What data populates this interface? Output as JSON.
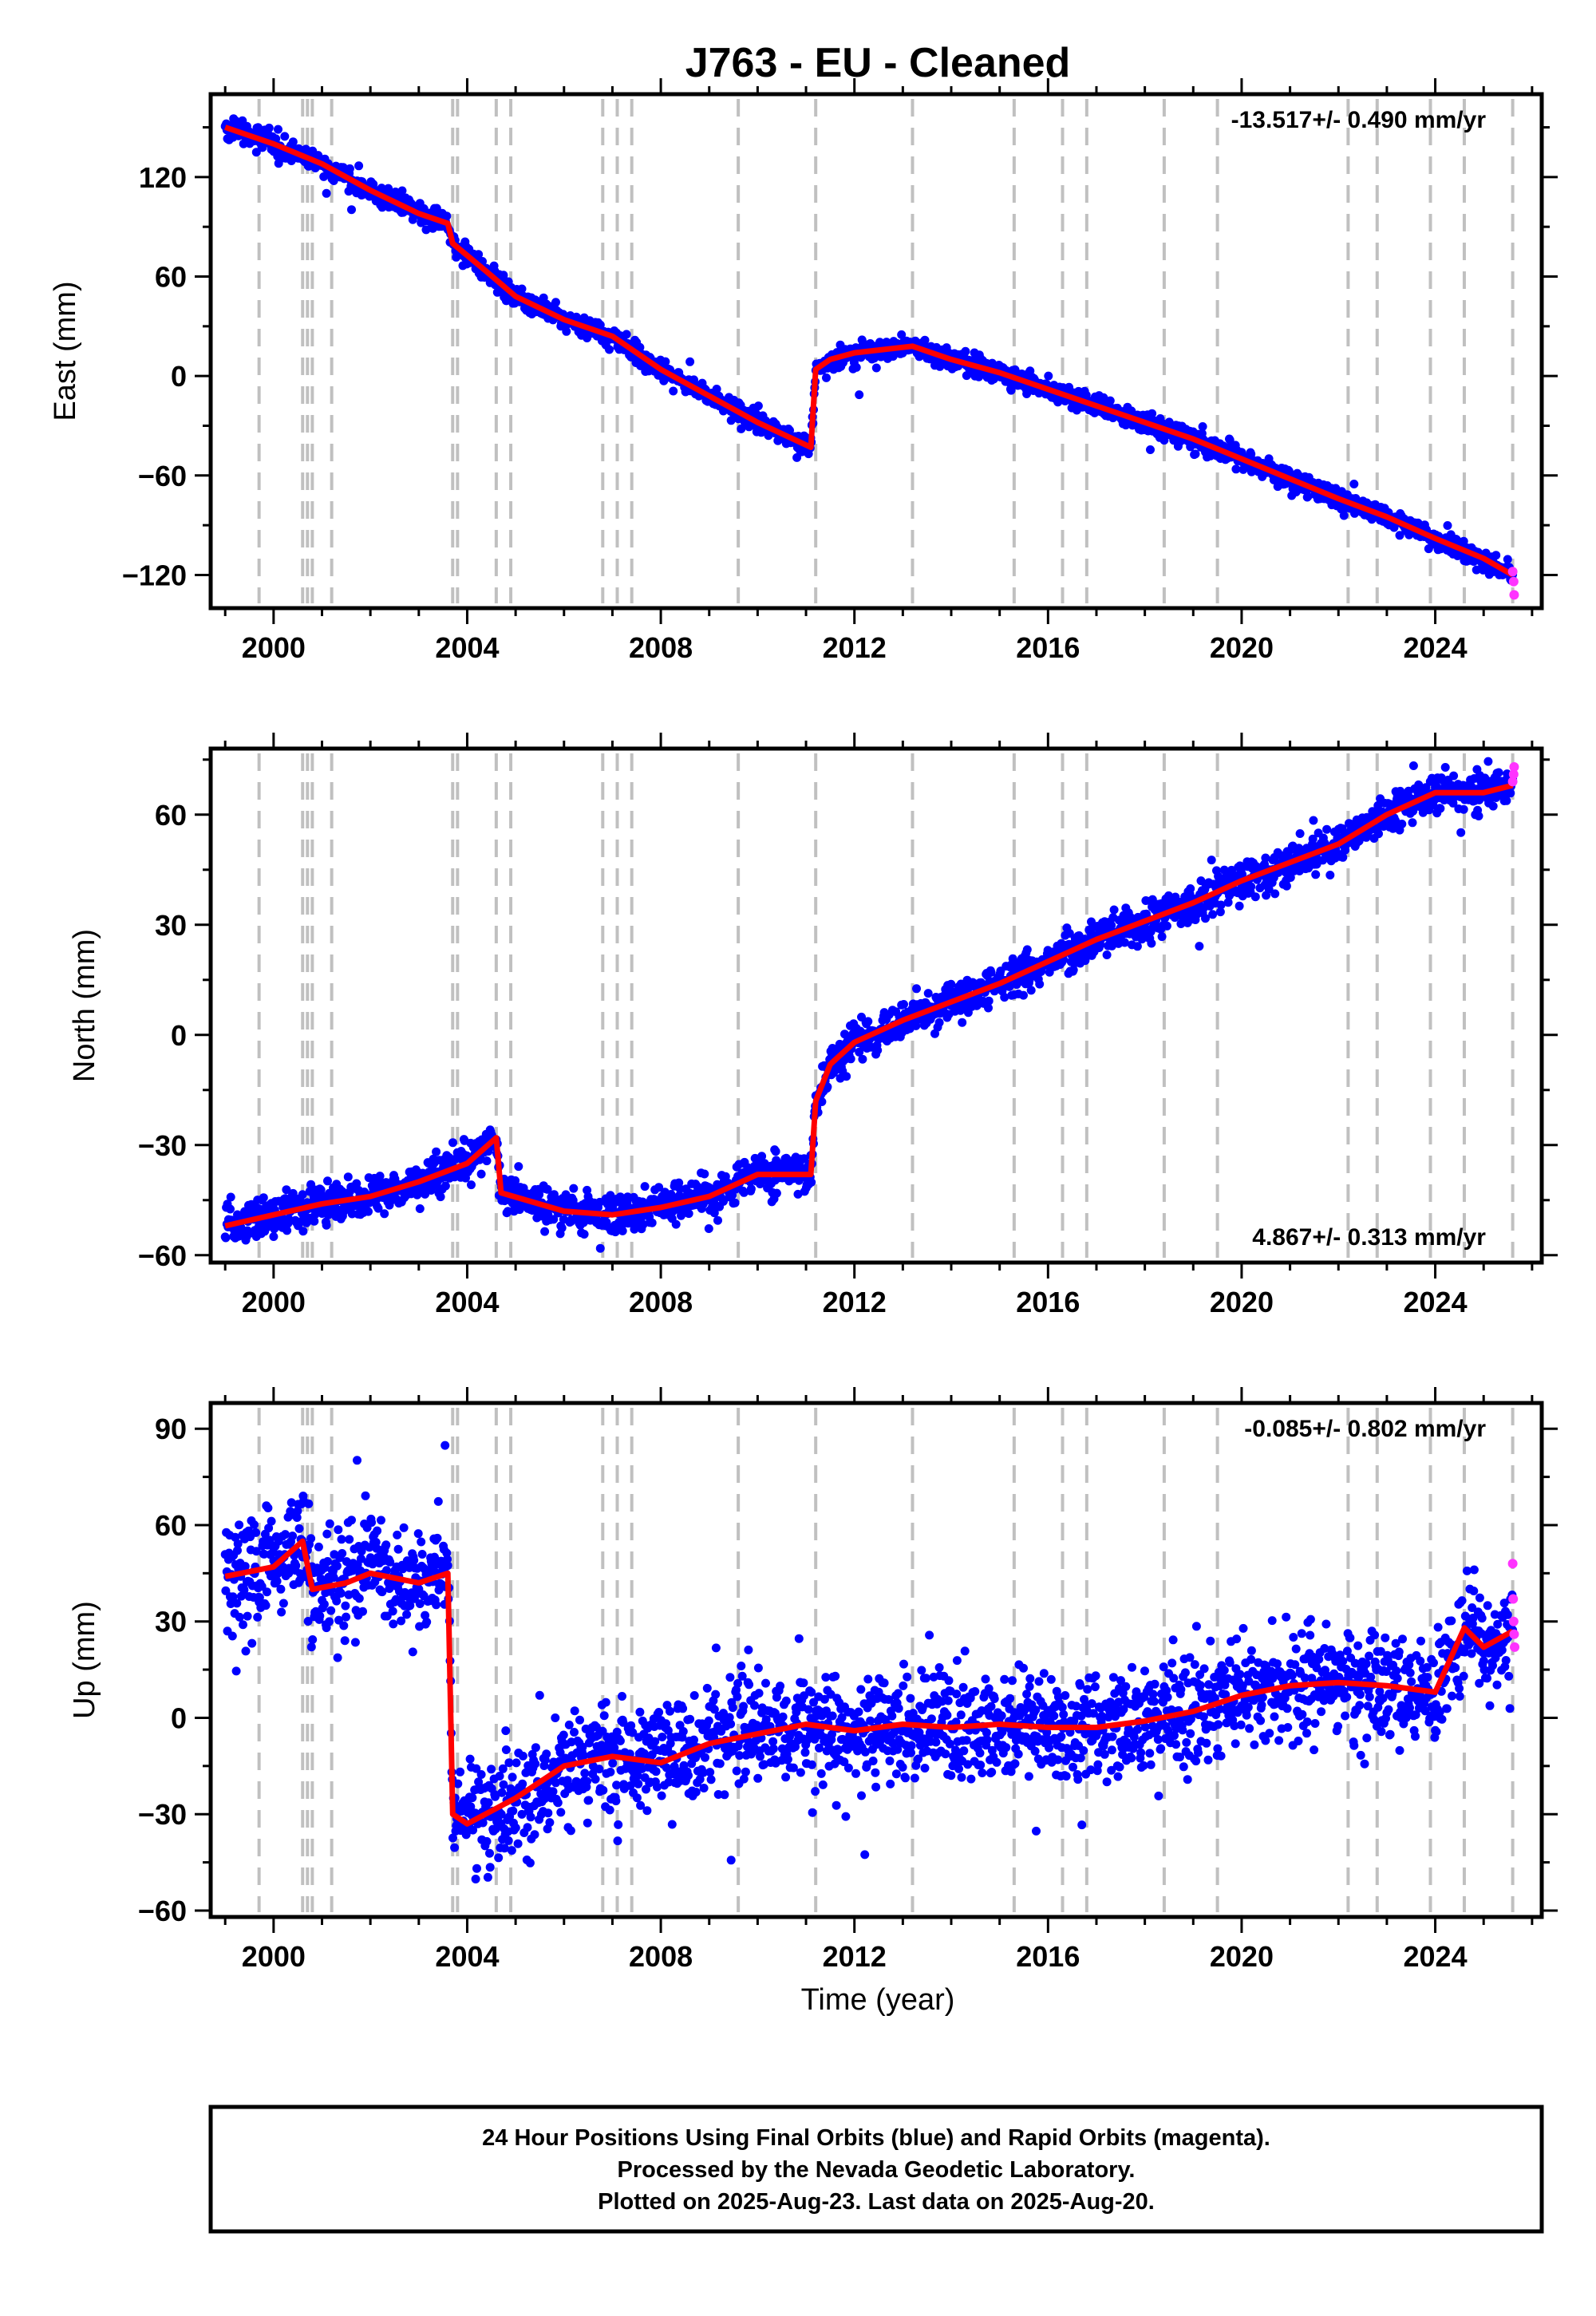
{
  "title": "J763  - EU - Cleaned",
  "xlabel": "Time (year)",
  "footer": {
    "line1": "24 Hour Positions Using Final Orbits (blue) and Rapid Orbits (magenta).",
    "line2": "Processed by the Nevada Geodetic Laboratory.",
    "line3": "Plotted on 2025-Aug-23. Last data on 2025-Aug-20."
  },
  "colors": {
    "final_orbits": "#0000ff",
    "rapid_orbits": "#ff33ff",
    "model": "#ff0000",
    "steps": "#c0c0c0"
  },
  "chart_data": [
    {
      "type": "scatter",
      "name": "east",
      "ylabel": "East (mm)",
      "rate": "-13.517+/- 0.490 mm/yr",
      "xlim": [
        1998.7,
        2026.2
      ],
      "ylim": [
        -140,
        170
      ],
      "xticks": [
        2000,
        2004,
        2008,
        2012,
        2016,
        2020,
        2024
      ],
      "yticks": [
        -120,
        -60,
        0,
        60,
        120
      ],
      "ytick_labels": [
        "−120",
        "−60",
        "0",
        "60",
        "120"
      ],
      "trend": {
        "x": [
          1999.0,
          2000.0,
          2001.0,
          2002.0,
          2003.0,
          2003.6,
          2003.7,
          2004.4,
          2005.0,
          2006.0,
          2007.0,
          2008.0,
          2009.0,
          2010.0,
          2011.1,
          2011.2,
          2011.5,
          2012.0,
          2013.2,
          2014.0,
          2015.0,
          2016.0,
          2017.0,
          2018.0,
          2019.0,
          2020.0,
          2021.0,
          2022.0,
          2023.0,
          2024.0,
          2025.0,
          2025.6
        ],
        "y": [
          150,
          140,
          128,
          112,
          98,
          92,
          80,
          63,
          48,
          34,
          24,
          4,
          -12,
          -28,
          -43,
          4,
          10,
          14,
          18,
          10,
          2,
          -8,
          -18,
          -28,
          -38,
          -50,
          -62,
          -74,
          -85,
          -98,
          -110,
          -120
        ],
        "noise": 3.0
      },
      "rapid": {
        "x": [
          2025.6,
          2025.62,
          2025.63
        ],
        "y": [
          -118,
          -124,
          -132
        ]
      },
      "steps": [
        1999.7,
        2000.6,
        2000.7,
        2000.8,
        2001.2,
        2003.7,
        2003.8,
        2004.6,
        2004.9,
        2006.8,
        2007.1,
        2007.4,
        2009.6,
        2011.2,
        2013.2,
        2015.3,
        2016.3,
        2016.8,
        2018.4,
        2019.5,
        2022.2,
        2022.8,
        2023.9,
        2024.6,
        2025.6
      ]
    },
    {
      "type": "scatter",
      "name": "north",
      "ylabel": "North (mm)",
      "rate": "4.867+/- 0.313 mm/yr",
      "xlim": [
        1998.7,
        2026.2
      ],
      "ylim": [
        -62,
        78
      ],
      "xticks": [
        2000,
        2004,
        2008,
        2012,
        2016,
        2020,
        2024
      ],
      "yticks": [
        -60,
        -30,
        0,
        30,
        60
      ],
      "ytick_labels": [
        "−60",
        "−30",
        "0",
        "30",
        "60"
      ],
      "trend": {
        "x": [
          1999.0,
          2000.0,
          2001.0,
          2002.0,
          2003.0,
          2004.0,
          2004.6,
          2004.7,
          2006.0,
          2007.0,
          2008.0,
          2009.0,
          2010.0,
          2011.1,
          2011.2,
          2011.5,
          2012.0,
          2013.0,
          2014.0,
          2015.0,
          2016.0,
          2017.0,
          2018.0,
          2019.0,
          2020.0,
          2021.0,
          2022.0,
          2023.0,
          2024.0,
          2025.0,
          2025.6
        ],
        "y": [
          -52,
          -49,
          -46,
          -44,
          -40,
          -35,
          -28,
          -43,
          -48,
          -49,
          -47,
          -44,
          -38,
          -38,
          -18,
          -8,
          -2,
          4,
          9,
          14,
          20,
          26,
          31,
          36,
          42,
          47,
          52,
          60,
          66,
          66,
          68
        ],
        "noise": 2.6
      },
      "rapid": {
        "x": [
          2025.6,
          2025.62,
          2025.63
        ],
        "y": [
          69,
          71,
          73
        ]
      },
      "steps": [
        1999.7,
        2000.6,
        2000.7,
        2000.8,
        2001.2,
        2003.7,
        2003.8,
        2004.6,
        2004.9,
        2006.8,
        2007.1,
        2007.4,
        2009.6,
        2011.2,
        2013.2,
        2015.3,
        2016.3,
        2016.8,
        2018.4,
        2019.5,
        2022.2,
        2022.8,
        2023.9,
        2024.6,
        2025.6
      ]
    },
    {
      "type": "scatter",
      "name": "up",
      "ylabel": "Up (mm)",
      "rate": "-0.085+/- 0.802 mm/yr",
      "xlim": [
        1998.7,
        2026.2
      ],
      "ylim": [
        -62,
        98
      ],
      "xticks": [
        2000,
        2004,
        2008,
        2012,
        2016,
        2020,
        2024
      ],
      "yticks": [
        -60,
        -30,
        0,
        30,
        60,
        90
      ],
      "ytick_labels": [
        "−60",
        "−30",
        "0",
        "30",
        "60",
        "90"
      ],
      "trend": {
        "x": [
          1999.0,
          2000.0,
          2000.6,
          2000.8,
          2001.5,
          2002.0,
          2003.0,
          2003.6,
          2003.7,
          2004.0,
          2005.0,
          2006.0,
          2007.0,
          2008.0,
          2009.0,
          2010.0,
          2011.0,
          2012.0,
          2013.0,
          2014.0,
          2015.0,
          2016.0,
          2017.0,
          2018.0,
          2019.0,
          2020.0,
          2021.0,
          2022.0,
          2023.0,
          2024.0,
          2024.6,
          2025.0,
          2025.6
        ],
        "y": [
          44,
          47,
          55,
          40,
          42,
          45,
          42,
          45,
          -30,
          -33,
          -25,
          -15,
          -12,
          -14,
          -8,
          -5,
          -2,
          -4,
          -2,
          -3,
          -2,
          -3,
          -3,
          -1,
          2,
          7,
          10,
          11,
          10,
          8,
          28,
          22,
          27
        ],
        "noise": 8.5
      },
      "rapid": {
        "x": [
          2025.6,
          2025.61,
          2025.62,
          2025.63,
          2025.64
        ],
        "y": [
          48,
          37,
          30,
          26,
          22
        ]
      },
      "steps": [
        1999.7,
        2000.6,
        2000.7,
        2000.8,
        2001.2,
        2003.7,
        2003.8,
        2004.6,
        2004.9,
        2006.8,
        2007.1,
        2007.4,
        2009.6,
        2011.2,
        2013.2,
        2015.3,
        2016.3,
        2016.8,
        2018.4,
        2019.5,
        2022.2,
        2022.8,
        2023.9,
        2024.6,
        2025.6
      ]
    }
  ]
}
